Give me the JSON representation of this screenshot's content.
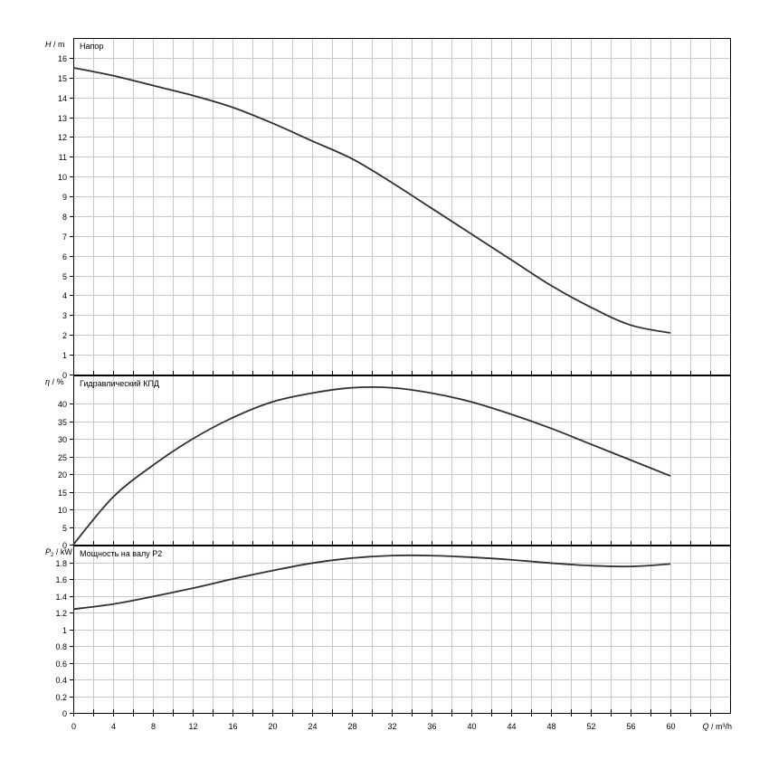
{
  "chart_data": [
    {
      "type": "line",
      "title": "Напор",
      "ylabel": "H / m",
      "ylabel_symbol": "H",
      "ylabel_unit": "m",
      "xlim": [
        0,
        66
      ],
      "ylim": [
        0,
        17
      ],
      "yticks": [
        0,
        1,
        2,
        3,
        4,
        5,
        6,
        7,
        8,
        9,
        10,
        11,
        12,
        13,
        14,
        15,
        16
      ],
      "grid": true,
      "series": [
        {
          "color": "#2b3139",
          "x": [
            0,
            4,
            8,
            12,
            16,
            20,
            24,
            28,
            32,
            36,
            40,
            44,
            48,
            52,
            56,
            60
          ],
          "values": [
            15.5,
            15.1,
            14.6,
            14.1,
            13.5,
            12.7,
            11.8,
            10.9,
            9.7,
            8.4,
            7.1,
            5.8,
            4.5,
            3.4,
            2.5,
            2.1
          ]
        }
      ]
    },
    {
      "type": "line",
      "title": "Гидравлический КПД",
      "ylabel": "η / %",
      "ylabel_symbol": "η",
      "ylabel_unit": "%",
      "xlim": [
        0,
        66
      ],
      "ylim": [
        0,
        48
      ],
      "yticks": [
        0,
        5,
        10,
        15,
        20,
        25,
        30,
        35,
        40
      ],
      "grid": true,
      "series": [
        {
          "color": "#2b3139",
          "x": [
            0,
            4,
            8,
            12,
            16,
            20,
            24,
            28,
            32,
            36,
            40,
            44,
            48,
            52,
            56,
            60
          ],
          "values": [
            0,
            13.5,
            22.5,
            30,
            36,
            40.5,
            43,
            44.5,
            44.5,
            43,
            40.5,
            37,
            33,
            28.5,
            24,
            19.5
          ]
        }
      ]
    },
    {
      "type": "line",
      "title": "Мощность на валу P2",
      "ylabel": "P2 / kW",
      "ylabel_symbol": "P",
      "ylabel_subscript": "2",
      "ylabel_unit": "kW",
      "xlabel": "Q / m³/h",
      "xlim": [
        0,
        66
      ],
      "ylim": [
        0,
        2.0
      ],
      "yticks": [
        0,
        0.2,
        0.4,
        0.6,
        0.8,
        1,
        1.2,
        1.4,
        1.6,
        1.8
      ],
      "xticks": [
        0,
        4,
        8,
        12,
        16,
        20,
        24,
        28,
        32,
        36,
        40,
        44,
        48,
        52,
        56,
        60
      ],
      "grid": true,
      "series": [
        {
          "color": "#2b3139",
          "x": [
            0,
            4,
            8,
            12,
            16,
            20,
            24,
            28,
            32,
            36,
            40,
            44,
            48,
            52,
            56,
            60
          ],
          "values": [
            1.24,
            1.3,
            1.39,
            1.49,
            1.6,
            1.7,
            1.79,
            1.85,
            1.88,
            1.88,
            1.86,
            1.83,
            1.79,
            1.76,
            1.75,
            1.78
          ]
        }
      ]
    }
  ]
}
